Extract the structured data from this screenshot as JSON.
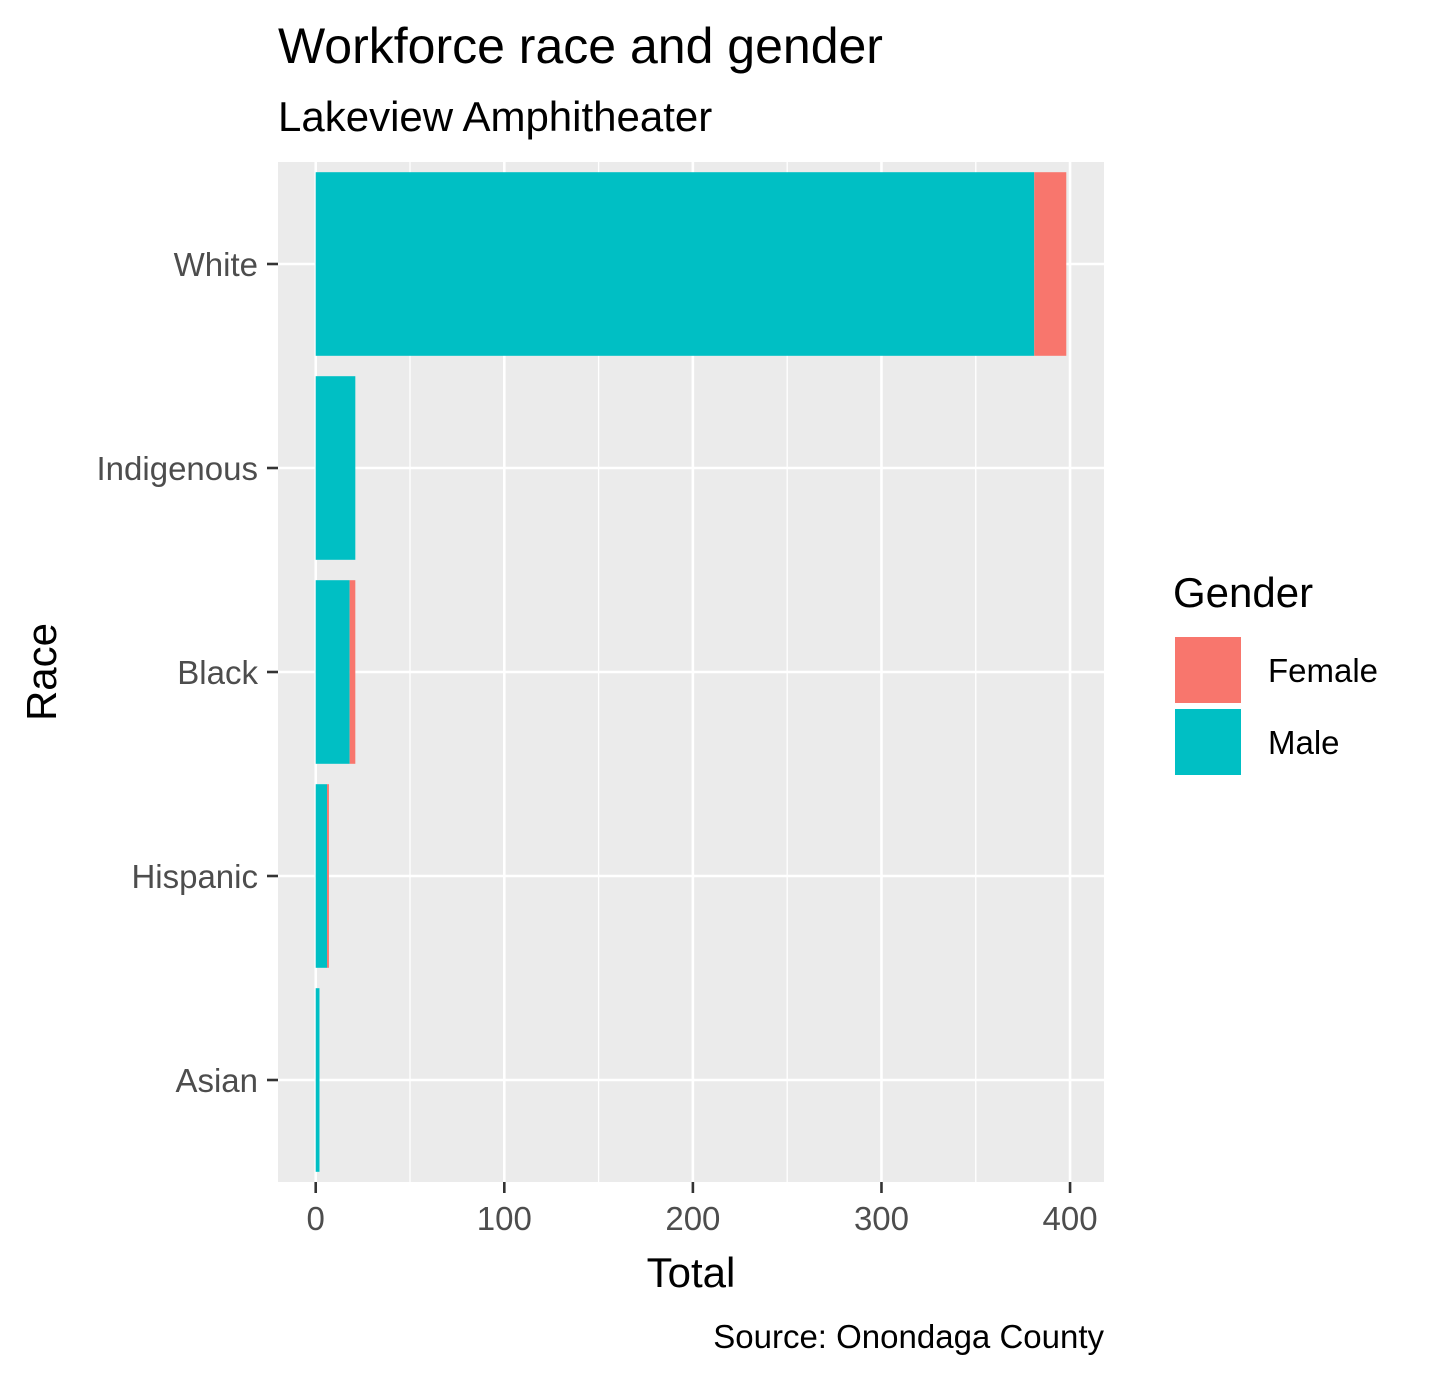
{
  "chart_data": {
    "type": "bar",
    "orientation": "horizontal",
    "stacked": true,
    "title": "Workforce race and gender",
    "subtitle": "Lakeview Amphitheater",
    "caption": "Source: Onondaga County",
    "xlabel": "Total",
    "ylabel": "Race",
    "xlim": [
      -20,
      418
    ],
    "xticks": [
      0,
      100,
      200,
      300,
      400
    ],
    "categories": [
      "White",
      "Indigenous",
      "Black",
      "Hispanic",
      "Asian"
    ],
    "series": [
      {
        "name": "Male",
        "color": "#00BFC4",
        "values": [
          381,
          21,
          18,
          6,
          2
        ]
      },
      {
        "name": "Female",
        "color": "#F8766D",
        "values": [
          17,
          0,
          3,
          1,
          0
        ]
      }
    ],
    "legend": {
      "title": "Gender",
      "position": "right",
      "entries": [
        {
          "label": "Female",
          "color": "#F8766D"
        },
        {
          "label": "Male",
          "color": "#00BFC4"
        }
      ]
    },
    "grid": true,
    "panel_background": "#EBEBEB",
    "grid_color": "#FFFFFF"
  }
}
